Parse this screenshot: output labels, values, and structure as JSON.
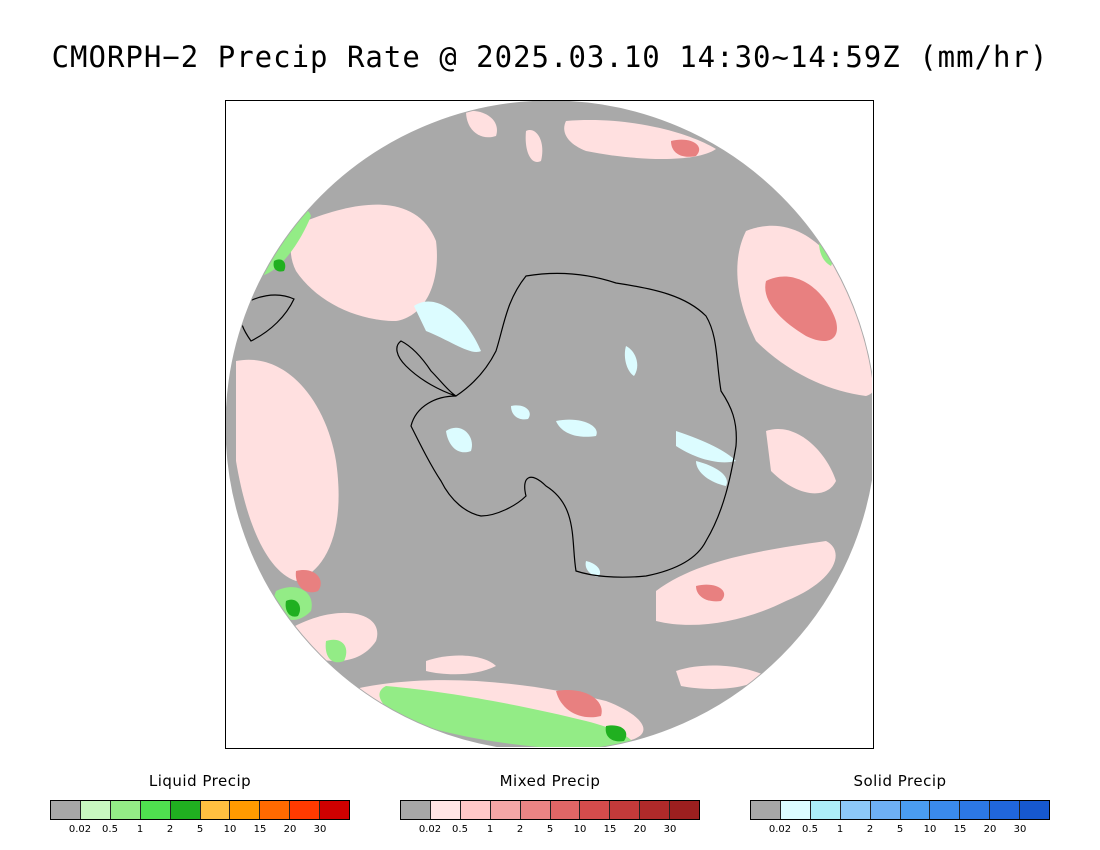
{
  "title": "CMORPH−2 Precip Rate @ 2025.03.10 14:30~14:59Z (mm/hr)",
  "map": {
    "projection": "south-polar-stereographic",
    "background_color": "#a9a9a9",
    "coastline_color": "#000000"
  },
  "legends": [
    {
      "id": "liquid",
      "title": "Liquid Precip",
      "colors": [
        "#a6a6a6",
        "#c8f7c0",
        "#93ec86",
        "#4fe04f",
        "#20b020",
        "#ffc040",
        "#ff9a00",
        "#ff6a00",
        "#ff3a00",
        "#d00000"
      ],
      "ticks": [
        "0.02",
        "0.5",
        "1",
        "2",
        "5",
        "10",
        "15",
        "20",
        "30"
      ]
    },
    {
      "id": "mixed",
      "title": "Mixed Precip",
      "colors": [
        "#a6a6a6",
        "#ffe4e4",
        "#ffc8c8",
        "#f4a6a6",
        "#ea8484",
        "#e06666",
        "#d44c4c",
        "#c43a3a",
        "#b02a2a",
        "#9c1f1f"
      ],
      "ticks": [
        "0.02",
        "0.5",
        "1",
        "2",
        "5",
        "10",
        "15",
        "20",
        "30"
      ]
    },
    {
      "id": "solid",
      "title": "Solid Precip",
      "colors": [
        "#a6a6a6",
        "#dcfcff",
        "#aceef8",
        "#8cc8f8",
        "#6eb0f4",
        "#4a9cf0",
        "#3a8aec",
        "#2c78e4",
        "#2066dc",
        "#1658d0"
      ],
      "ticks": [
        "0.02",
        "0.5",
        "1",
        "2",
        "5",
        "10",
        "15",
        "20",
        "30"
      ]
    }
  ]
}
